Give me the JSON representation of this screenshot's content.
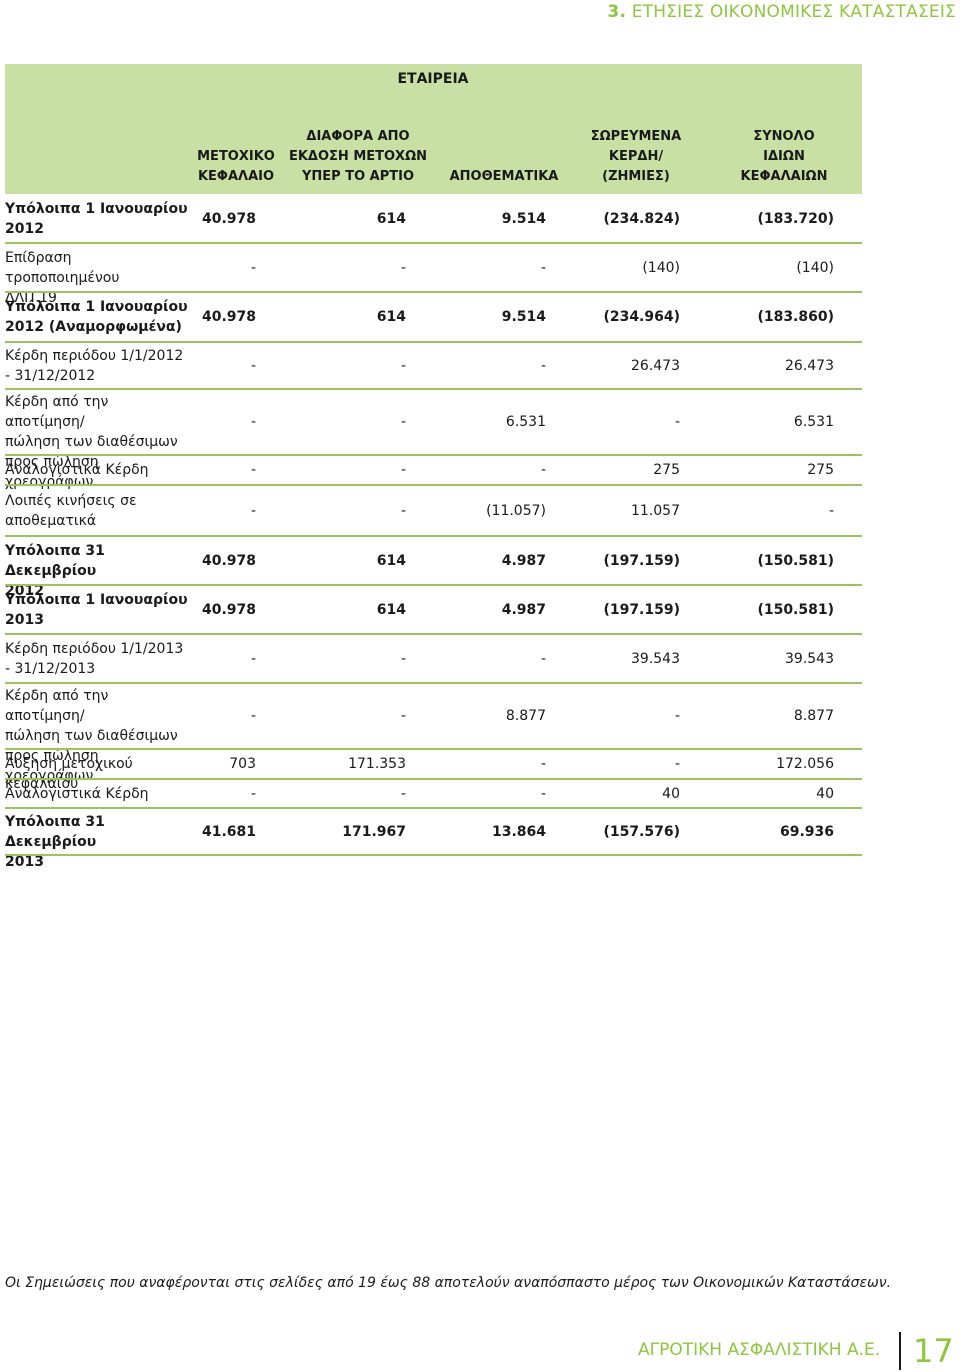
{
  "section": {
    "number": "3.",
    "title": "ΕΤΗΣΙΕΣ ΟΙΚΟΝΟΜΙΚΕΣ ΚΑΤΑΣΤΑΣΕΙΣ"
  },
  "company_header": "ΕΤΑΙΡΕΙΑ",
  "columns": [
    [
      "ΜΕΤΟΧΙΚΟ",
      "ΚΕΦΑΛΑΙΟ"
    ],
    [
      "ΔΙΑΦΟΡΑ ΑΠΟ",
      "ΕΚΔΟΣΗ ΜΕΤΟΧΩΝ",
      "ΥΠΕΡ ΤΟ ΑΡΤΙΟ"
    ],
    [
      "ΑΠΟΘΕΜΑΤΙΚΑ"
    ],
    [
      "ΣΩΡΕΥΜΕΝΑ",
      "ΚΕΡΔΗ/",
      "(ΖΗΜΙΕΣ)"
    ],
    [
      "ΣΥΝΟΛΟ",
      "ΙΔΙΩΝ",
      "ΚΕΦΑΛΑΙΩΝ"
    ]
  ],
  "rows": [
    {
      "label": [
        "Υπόλοιπα 1 Ιανουαρίου",
        "2012"
      ],
      "bold": true,
      "values": [
        "40.978",
        "614",
        "9.514",
        "(234.824)",
        "(183.720)"
      ]
    },
    {
      "label": [
        "Επίδραση τροποποιημένου",
        "ΔΛΠ 19"
      ],
      "bold": false,
      "values": [
        "-",
        "-",
        "-",
        "(140)",
        "(140)"
      ]
    },
    {
      "label": [
        "Υπόλοιπα 1 Ιανουαρίου",
        "2012 (Αναμορφωμένα)"
      ],
      "bold": true,
      "values": [
        "40.978",
        "614",
        "9.514",
        "(234.964)",
        "(183.860)"
      ]
    },
    {
      "label": [
        "Κέρδη περιόδου 1/1/2012",
        "- 31/12/2012"
      ],
      "bold": false,
      "values": [
        "-",
        "-",
        "-",
        "26.473",
        "26.473"
      ]
    },
    {
      "label": [
        "Κέρδη από την αποτίμηση/",
        "πώληση των διαθέσιμων",
        "προς πώληση χρεογράφων"
      ],
      "bold": false,
      "values": [
        "-",
        "-",
        "6.531",
        "-",
        "6.531"
      ]
    },
    {
      "label": [
        "Αναλογιστικά Κέρδη"
      ],
      "bold": false,
      "values": [
        "-",
        "-",
        "-",
        "275",
        "275"
      ]
    },
    {
      "label": [
        "Λοιπές κινήσεις σε",
        "αποθεματικά"
      ],
      "bold": false,
      "values": [
        "-",
        "-",
        "(11.057)",
        "11.057",
        "-"
      ]
    },
    {
      "label": [
        "Υπόλοιπα 31 Δεκεμβρίου",
        "2012"
      ],
      "bold": true,
      "values": [
        "40.978",
        "614",
        "4.987",
        "(197.159)",
        "(150.581)"
      ]
    },
    {
      "label": [
        "Υπόλοιπα 1 Ιανουαρίου",
        "2013"
      ],
      "bold": true,
      "values": [
        "40.978",
        "614",
        "4.987",
        "(197.159)",
        "(150.581)"
      ]
    },
    {
      "label": [
        "Κέρδη περιόδου 1/1/2013",
        "- 31/12/2013"
      ],
      "bold": false,
      "values": [
        "-",
        "-",
        "-",
        "39.543",
        "39.543"
      ]
    },
    {
      "label": [
        "Κέρδη από την αποτίμηση/",
        "πώληση των διαθέσιμων",
        "προς πώληση χρεογράφων"
      ],
      "bold": false,
      "values": [
        "-",
        "-",
        "8.877",
        "-",
        "8.877"
      ]
    },
    {
      "label": [
        "Αυξηση μετοχικού κεφαλαίου"
      ],
      "bold": false,
      "values": [
        "703",
        "171.353",
        "-",
        "-",
        "172.056"
      ]
    },
    {
      "label": [
        "Αναλογιστικά Κέρδη"
      ],
      "bold": false,
      "values": [
        "-",
        "-",
        "-",
        "40",
        "40"
      ]
    },
    {
      "label": [
        "Υπόλοιπα 31 Δεκεμβρίου",
        "2013"
      ],
      "bold": true,
      "values": [
        "41.681",
        "171.967",
        "13.864",
        "(157.576)",
        "69.936"
      ]
    }
  ],
  "footnote": "Οι Σημειώσεις που αναφέρονται στις σελίδες από 19 έως 88 αποτελούν αναπόσπαστο μέρος των Οικονομικών Καταστάσεων.",
  "footer": {
    "company": "ΑΓΡΟΤΙΚΗ ΑΣΦΑΛΙΣΤΙΚΗ Α.Ε.",
    "page": "17"
  }
}
